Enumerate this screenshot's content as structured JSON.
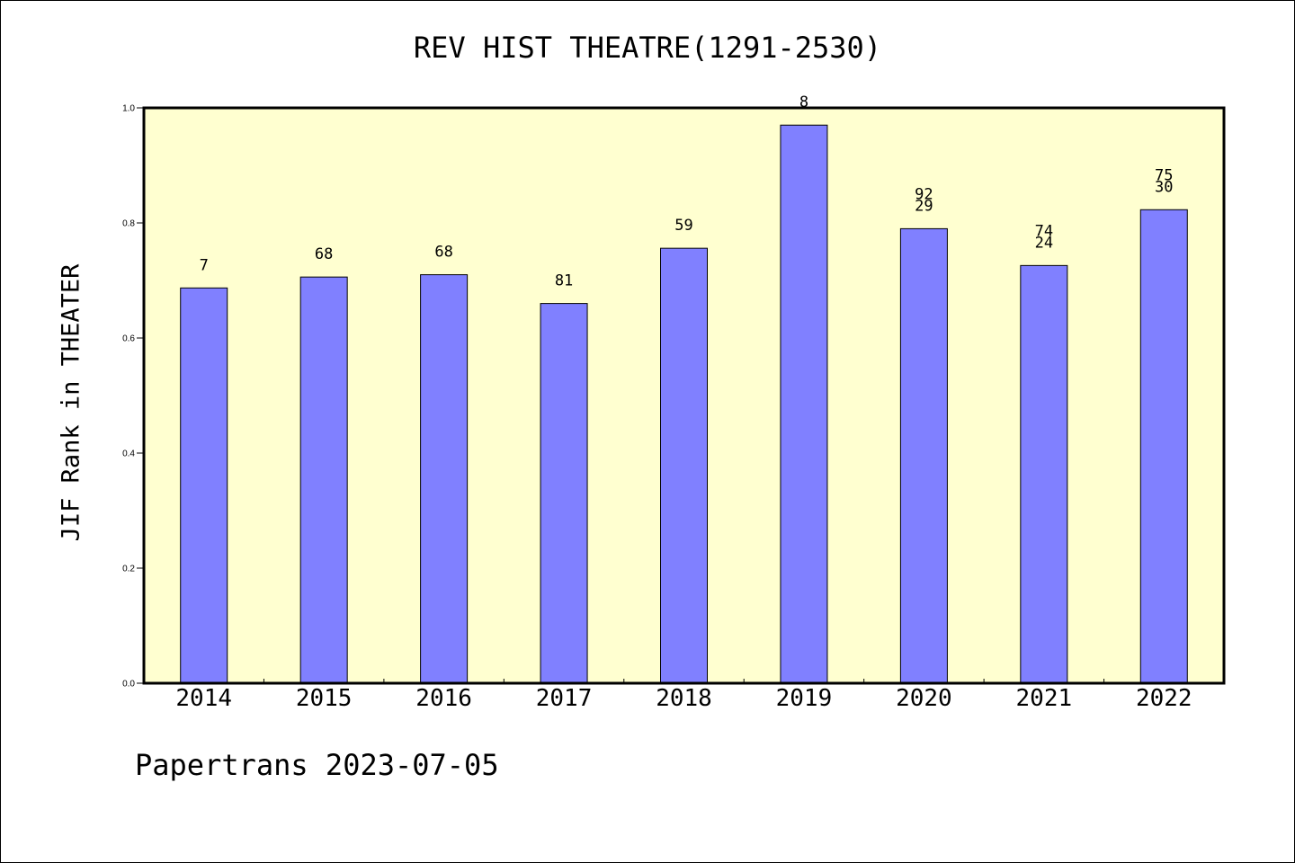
{
  "chart_data": {
    "type": "bar",
    "title": "REV HIST THEATRE(1291-2530)",
    "xlabel": "",
    "ylabel": "JIF Rank in THEATER",
    "ylim": [
      0.0,
      1.0
    ],
    "yticks": [
      "0.0",
      "0.2",
      "0.4",
      "0.6",
      "0.8",
      "1.0"
    ],
    "categories": [
      "2014",
      "2015",
      "2016",
      "2017",
      "2018",
      "2019",
      "2020",
      "2021",
      "2022"
    ],
    "values": [
      0.687,
      0.706,
      0.71,
      0.66,
      0.756,
      0.97,
      0.79,
      0.726,
      0.823
    ],
    "bar_labels": [
      [
        "7"
      ],
      [
        "68"
      ],
      [
        "68"
      ],
      [
        "81"
      ],
      [
        "59"
      ],
      [
        "8"
      ],
      [
        "92",
        "29"
      ],
      [
        "74",
        "24"
      ],
      [
        "75",
        "30"
      ]
    ],
    "colors": {
      "bar": "#8080ff",
      "plot_bg": "#ffffd0",
      "axis": "#000000"
    },
    "grid": false,
    "footer": "Papertrans 2023-07-05"
  }
}
